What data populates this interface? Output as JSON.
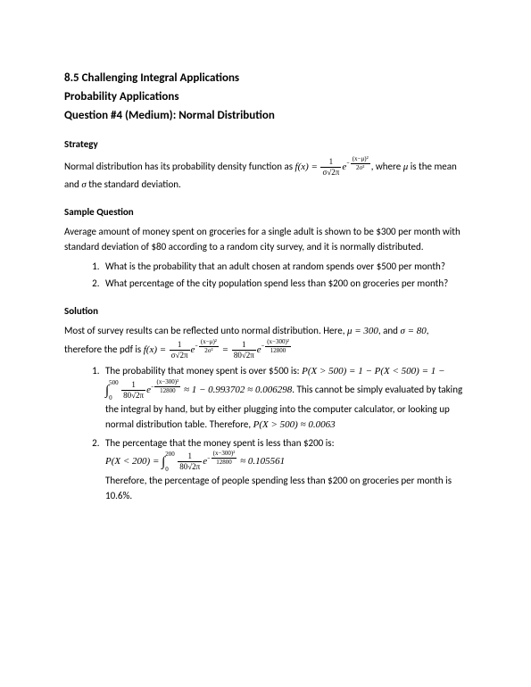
{
  "heading": {
    "line1": "8.5 Challenging Integral Applications",
    "line2": "Probability Applications",
    "line3": "Question #4 (Medium): Normal Distribution"
  },
  "strategy": {
    "label": "Strategy",
    "text_before": "Normal distribution has its probability density function as ",
    "formula": {
      "fx": "f(x) =",
      "frac1_num": "1",
      "frac1_den": "σ√2π",
      "e": "e",
      "exp_neg": "−",
      "exp_num": "(x−μ)²",
      "exp_den": "2σ²"
    },
    "text_after1": ", where ",
    "mu": "μ",
    "text_after2": " is the mean and ",
    "sigma": "σ",
    "text_after3": " the standard deviation."
  },
  "sample": {
    "label": "Sample Question",
    "intro": "Average amount of money spent on groceries for a single adult is shown to be $300 per month with standard deviation of $80 according to a random city survey, and it is normally distributed.",
    "q1": "What is the probability that an adult chosen at random spends over $500 per month?",
    "q2": "What percentage of the city population spend less than $200 on groceries per month?"
  },
  "solution": {
    "label": "Solution",
    "intro1": "Most of survey results can be reflected unto normal distribution. Here, ",
    "mu_eq": "μ = 300",
    "intro2": ", and ",
    "sigma_eq": "σ = 80",
    "intro3": ", therefore the pdf is ",
    "pdf": {
      "fx": "f(x) =",
      "f1_num": "1",
      "f1_den": "σ√2π",
      "e": "e",
      "neg": "−",
      "e1_num": "(x−μ)²",
      "e1_den": "2σ²",
      "eq": " = ",
      "f2_num": "1",
      "f2_den": "80√2π",
      "e2_num": "(x−300)²",
      "e2_den": "12800"
    },
    "part1": {
      "lead": "The probability that money spent is over $500 is: ",
      "eq1": "P(X > 500) = 1 − P(X < 500) = 1 −",
      "int_top": "500",
      "int_bot": "0",
      "f_num": "1",
      "f_den": "80√2π",
      "e": "e",
      "neg": "−",
      "exp_num": "(x−300)²",
      "exp_den": "12800",
      "approx1": " ≈ 1 − 0.993702 ≈ 0.006298",
      "tail1": ". This cannot be simply evaluated by taking the integral by hand, but by either plugging into the computer calculator, or looking up normal distribution table. Therefore, ",
      "final": "P(X > 500) ≈ 0.0063"
    },
    "part2": {
      "lead": "The percentage that the money spent is less than $200 is:",
      "lhs": "P(X < 200) = ",
      "int_top": "200",
      "int_bot": "0",
      "f_num": "1",
      "f_den": "80√2π",
      "e": "e",
      "neg": "−",
      "exp_num": "(x−300)²",
      "exp_den": "12800",
      "approx": " ≈ 0.105561",
      "tail": "Therefore, the percentage of people spending less than $200 on groceries per month is 10.6%."
    }
  }
}
